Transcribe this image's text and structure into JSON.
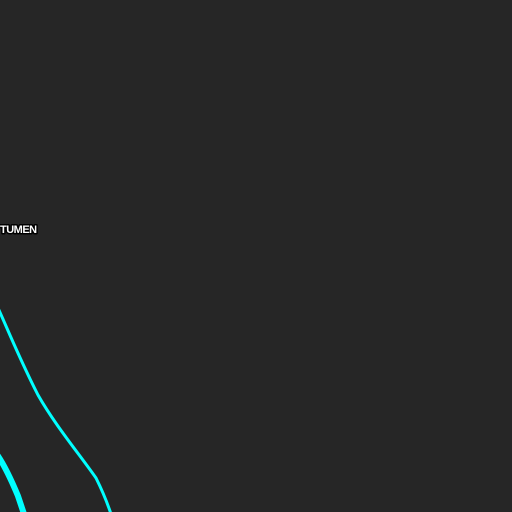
{
  "map": {
    "background_color": "#262626",
    "road_color": "#00ffff",
    "labels": {
      "place": "TUMEN"
    },
    "features": [
      {
        "name": "river-line",
        "kind": "waterway"
      },
      {
        "name": "road-line",
        "kind": "road"
      }
    ]
  }
}
